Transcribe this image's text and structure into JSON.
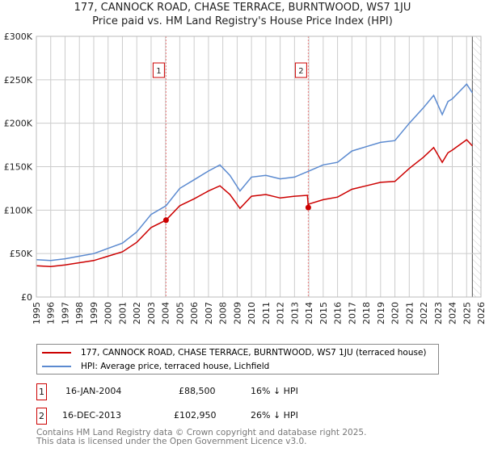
{
  "chart_data": {
    "type": "line",
    "title": "177, CANNOCK ROAD, CHASE TERRACE, BURNTWOOD, WS7 1JU",
    "subtitle": "Price paid vs. HM Land Registry's House Price Index (HPI)",
    "xlim": [
      1995,
      2026
    ],
    "ylim": [
      0,
      300000
    ],
    "y_ticks": [
      {
        "v": 0,
        "label": "£0"
      },
      {
        "v": 50000,
        "label": "£50K"
      },
      {
        "v": 100000,
        "label": "£100K"
      },
      {
        "v": 150000,
        "label": "£150K"
      },
      {
        "v": 200000,
        "label": "£200K"
      },
      {
        "v": 250000,
        "label": "£250K"
      },
      {
        "v": 300000,
        "label": "£300K"
      }
    ],
    "x_ticks": [
      "1995",
      "1996",
      "1997",
      "1998",
      "1999",
      "2000",
      "2001",
      "2002",
      "2003",
      "2004",
      "2005",
      "2006",
      "2007",
      "2008",
      "2009",
      "2010",
      "2011",
      "2012",
      "2013",
      "2014",
      "2015",
      "2016",
      "2017",
      "2018",
      "2019",
      "2020",
      "2021",
      "2022",
      "2023",
      "2024",
      "2025",
      "2026"
    ],
    "grid": true,
    "hatched_from": 2025.4,
    "series": [
      {
        "name": "177, CANNOCK ROAD, CHASE TERRACE, BURNTWOOD, WS7 1JU (terraced house)",
        "color": "#cc0000",
        "x": [
          1995,
          1996,
          1997,
          1998,
          1999,
          2000,
          2001,
          2002,
          2003,
          2004.04,
          2005,
          2006,
          2007,
          2007.8,
          2008.5,
          2009.2,
          2010,
          2011,
          2012,
          2013,
          2013.9,
          2013.96,
          2014,
          2015,
          2016,
          2017,
          2018,
          2019,
          2020,
          2021,
          2022,
          2022.7,
          2023.3,
          2023.7,
          2024,
          2025,
          2025.4
        ],
        "y": [
          36000,
          35000,
          37000,
          39500,
          42000,
          47000,
          52000,
          63000,
          80000,
          88500,
          105000,
          113000,
          122000,
          128000,
          118000,
          102000,
          116000,
          118000,
          114000,
          116000,
          117000,
          102950,
          107000,
          112000,
          115000,
          124000,
          128000,
          132000,
          133000,
          148000,
          161000,
          172000,
          155000,
          166000,
          169000,
          181000,
          174000
        ]
      },
      {
        "name": "HPI: Average price, terraced house, Lichfield",
        "color": "#5b8ad0",
        "x": [
          1995,
          1996,
          1997,
          1998,
          1999,
          2000,
          2001,
          2002,
          2003,
          2004.04,
          2005,
          2006,
          2007,
          2007.8,
          2008.5,
          2009.2,
          2010,
          2011,
          2012,
          2013,
          2014,
          2015,
          2016,
          2017,
          2018,
          2019,
          2020,
          2021,
          2022,
          2022.7,
          2023.3,
          2023.7,
          2024,
          2025,
          2025.4
        ],
        "y": [
          43000,
          42000,
          44000,
          47000,
          50000,
          56000,
          62000,
          75000,
          95000,
          105000,
          125000,
          135000,
          145000,
          152000,
          140000,
          122000,
          138000,
          140000,
          136000,
          138000,
          145000,
          152000,
          155000,
          168000,
          173000,
          178000,
          180000,
          200000,
          218000,
          232000,
          210000,
          225000,
          228000,
          245000,
          235000
        ]
      }
    ],
    "annotations": [
      {
        "label": "1",
        "x": 2004.04,
        "y": 88500
      },
      {
        "label": "2",
        "x": 2013.96,
        "y": 102950
      }
    ]
  },
  "legend": {
    "property": "177, CANNOCK ROAD, CHASE TERRACE, BURNTWOOD, WS7 1JU (terraced house)",
    "hpi": "HPI: Average price, terraced house, Lichfield"
  },
  "sales": [
    {
      "num": "1",
      "date": "16-JAN-2004",
      "price": "£88,500",
      "delta": "16% ↓ HPI"
    },
    {
      "num": "2",
      "date": "16-DEC-2013",
      "price": "£102,950",
      "delta": "26% ↓ HPI"
    }
  ],
  "footer": [
    "Contains HM Land Registry data © Crown copyright and database right 2025.",
    "This data is licensed under the Open Government Licence v3.0."
  ]
}
